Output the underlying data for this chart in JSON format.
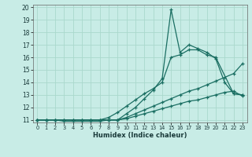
{
  "xlabel": "Humidex (Indice chaleur)",
  "bg_color": "#c8ece6",
  "line_color": "#1a6e62",
  "grid_color": "#aad8cc",
  "xlim": [
    -0.5,
    23.5
  ],
  "ylim": [
    10.8,
    20.2
  ],
  "xticks": [
    0,
    1,
    2,
    3,
    4,
    5,
    6,
    7,
    8,
    9,
    10,
    11,
    12,
    13,
    14,
    15,
    16,
    17,
    18,
    19,
    20,
    21,
    22,
    23
  ],
  "yticks": [
    11,
    12,
    13,
    14,
    15,
    16,
    17,
    18,
    19,
    20
  ],
  "line1_x": [
    0,
    1,
    2,
    3,
    4,
    5,
    6,
    7,
    8,
    9,
    10,
    11,
    12,
    13,
    14,
    15,
    16,
    17,
    18,
    19,
    20,
    22,
    23
  ],
  "line1_y": [
    11,
    11,
    11,
    11,
    11,
    11,
    11,
    11,
    11.2,
    11.6,
    12.1,
    12.6,
    13.1,
    13.5,
    14.0,
    16.0,
    16.2,
    16.6,
    16.6,
    16.2,
    16.0,
    13.1,
    13.0
  ],
  "line2_x": [
    0,
    1,
    2,
    3,
    4,
    5,
    6,
    7,
    8,
    9,
    10,
    11,
    12,
    13,
    14,
    15,
    16,
    17,
    18,
    19,
    20,
    21,
    22,
    23
  ],
  "line2_y": [
    11,
    11,
    11,
    10.9,
    10.9,
    10.9,
    10.9,
    10.9,
    11.0,
    11.0,
    11.5,
    12.0,
    12.7,
    13.4,
    14.3,
    19.8,
    16.4,
    17.0,
    16.7,
    16.4,
    15.9,
    14.0,
    13.1,
    13.0
  ],
  "line3_x": [
    0,
    1,
    2,
    3,
    4,
    5,
    6,
    7,
    8,
    9,
    10,
    11,
    12,
    13,
    14,
    15,
    16,
    17,
    18,
    19,
    20,
    21,
    22,
    23
  ],
  "line3_y": [
    11,
    11,
    11,
    11,
    11,
    11,
    11,
    11,
    11,
    11,
    11.2,
    11.5,
    11.8,
    12.1,
    12.4,
    12.7,
    13.0,
    13.3,
    13.5,
    13.8,
    14.1,
    14.4,
    14.7,
    15.5
  ],
  "line4_x": [
    0,
    1,
    2,
    3,
    4,
    5,
    6,
    7,
    8,
    9,
    10,
    11,
    12,
    13,
    14,
    15,
    16,
    17,
    18,
    19,
    20,
    21,
    22,
    23
  ],
  "line4_y": [
    11,
    11,
    11,
    11,
    11,
    11,
    11,
    11,
    11,
    11,
    11.1,
    11.3,
    11.5,
    11.7,
    11.9,
    12.1,
    12.3,
    12.5,
    12.6,
    12.8,
    13.0,
    13.2,
    13.3,
    12.9
  ]
}
